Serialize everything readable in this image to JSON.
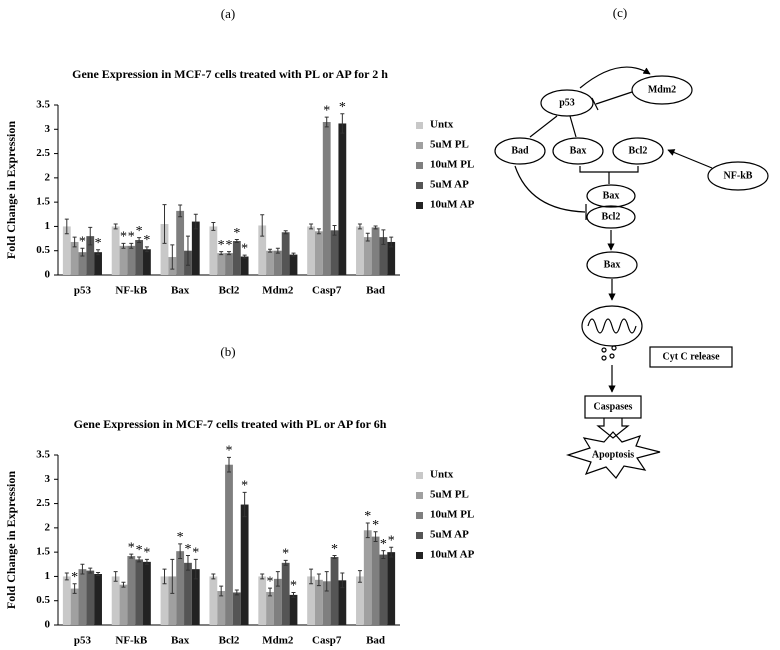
{
  "chart_data": [
    {
      "type": "bar",
      "panel": "(a)",
      "title": "Gene Expression in MCF-7 cells treated with PL or AP for 2 h",
      "ylabel": "Fold Change in Expression",
      "legend": "right",
      "categories": [
        "p53",
        "NF-kB",
        "Bax",
        "Bcl2",
        "Mdm2",
        "Casp7",
        "Bad"
      ],
      "ylim": [
        0,
        3.5
      ],
      "yticks": [
        0,
        0.5,
        1,
        1.5,
        2,
        2.5,
        3,
        3.5
      ],
      "series": [
        {
          "name": "Untx",
          "color": "#c8c8c8",
          "values": [
            1.0,
            1.0,
            1.05,
            1.0,
            1.02,
            1.0,
            1.0
          ],
          "errors": [
            0.15,
            0.05,
            0.4,
            0.08,
            0.22,
            0.05,
            0.05
          ],
          "significance": [
            null,
            null,
            null,
            null,
            null,
            null,
            null
          ]
        },
        {
          "name": "5uM PL",
          "color": "#a0a0a0",
          "values": [
            0.68,
            0.6,
            0.37,
            0.45,
            0.5,
            0.9,
            0.78
          ],
          "errors": [
            0.1,
            0.05,
            0.25,
            0.03,
            0.03,
            0.05,
            0.08
          ],
          "significance": [
            null,
            "*",
            null,
            "*",
            null,
            null,
            null
          ]
        },
        {
          "name": "10uM PL",
          "color": "#7f7f7f",
          "values": [
            0.47,
            0.6,
            1.32,
            0.45,
            0.5,
            3.15,
            0.98
          ],
          "errors": [
            0.08,
            0.05,
            0.12,
            0.03,
            0.05,
            0.1,
            0.03
          ],
          "significance": [
            "*",
            "*",
            null,
            "*",
            null,
            "*",
            null
          ]
        },
        {
          "name": "5uM AP",
          "color": "#555555",
          "values": [
            0.8,
            0.72,
            0.5,
            0.7,
            0.88,
            0.92,
            0.78
          ],
          "errors": [
            0.18,
            0.05,
            0.3,
            0.03,
            0.03,
            0.1,
            0.15
          ],
          "significance": [
            null,
            "*",
            null,
            "*",
            null,
            null,
            null
          ]
        },
        {
          "name": "10uM AP",
          "color": "#222222",
          "values": [
            0.47,
            0.53,
            1.1,
            0.38,
            0.42,
            3.12,
            0.68
          ],
          "errors": [
            0.05,
            0.05,
            0.15,
            0.03,
            0.03,
            0.2,
            0.1
          ],
          "significance": [
            "*",
            "*",
            null,
            "*",
            null,
            "*",
            null
          ]
        }
      ]
    },
    {
      "type": "bar",
      "panel": "(b)",
      "title": "Gene Expression in MCF-7 cells treated with PL or AP for 6h",
      "ylabel": "Fold Change in Expression",
      "legend": "right",
      "categories": [
        "p53",
        "NF-kB",
        "Bax",
        "Bcl2",
        "Mdm2",
        "Casp7",
        "Bad"
      ],
      "ylim": [
        0,
        3.5
      ],
      "yticks": [
        0,
        0.5,
        1,
        1.5,
        2,
        2.5,
        3,
        3.5
      ],
      "series": [
        {
          "name": "Untx",
          "color": "#c8c8c8",
          "values": [
            1.0,
            1.0,
            1.0,
            1.0,
            1.0,
            1.0,
            1.0
          ],
          "errors": [
            0.07,
            0.1,
            0.15,
            0.05,
            0.05,
            0.15,
            0.12
          ],
          "significance": [
            null,
            null,
            null,
            null,
            null,
            null,
            null
          ]
        },
        {
          "name": "5uM PL",
          "color": "#a0a0a0",
          "values": [
            0.75,
            0.83,
            1.0,
            0.7,
            0.68,
            0.93,
            1.95
          ],
          "errors": [
            0.1,
            0.05,
            0.35,
            0.1,
            0.08,
            0.12,
            0.15
          ],
          "significance": [
            "*",
            null,
            null,
            null,
            "*",
            null,
            "*"
          ]
        },
        {
          "name": "10uM PL",
          "color": "#7f7f7f",
          "values": [
            1.15,
            1.42,
            1.52,
            3.3,
            0.95,
            0.9,
            1.82
          ],
          "errors": [
            0.1,
            0.04,
            0.15,
            0.15,
            0.15,
            0.2,
            0.1
          ],
          "significance": [
            null,
            "*",
            "*",
            "*",
            null,
            null,
            "*"
          ]
        },
        {
          "name": "5uM AP",
          "color": "#555555",
          "values": [
            1.12,
            1.35,
            1.28,
            0.67,
            1.28,
            1.4,
            1.45
          ],
          "errors": [
            0.05,
            0.05,
            0.15,
            0.05,
            0.05,
            0.03,
            0.08
          ],
          "significance": [
            null,
            "*",
            "*",
            null,
            "*",
            "*",
            "*"
          ]
        },
        {
          "name": "10uM AP",
          "color": "#222222",
          "values": [
            1.05,
            1.3,
            1.15,
            2.48,
            0.62,
            0.92,
            1.5
          ],
          "errors": [
            0.03,
            0.05,
            0.2,
            0.25,
            0.05,
            0.15,
            0.1
          ],
          "significance": [
            null,
            "*",
            "*",
            "*",
            "*",
            null,
            "*"
          ]
        }
      ]
    }
  ],
  "diagram": {
    "label": "(c)",
    "nodes": [
      "p53",
      "Mdm2",
      "Bad",
      "Bax",
      "Bcl2",
      "NF-kB",
      "Bax",
      "Bcl2",
      "Bax",
      "Cyt C release",
      "Caspases",
      "Apoptosis"
    ]
  }
}
